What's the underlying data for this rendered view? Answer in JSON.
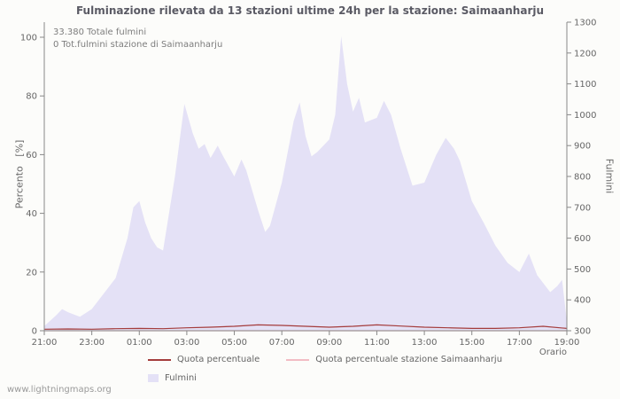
{
  "watermark": "www.lightningmaps.org",
  "annotations": {
    "total_fulmini": "33.380 Totale fulmini",
    "station_fulmini": "0 Tot.fulmini stazione di Saimaanharju"
  },
  "chart_data": {
    "type": "area",
    "title": "Fulminazione rilevata da 13 stazioni ultime 24h per la stazione: Saimaanharju",
    "legend_position": "bottom",
    "grid": false,
    "x_axis": {
      "label": "Orario",
      "hours_span": 22,
      "start": "21:00",
      "end": "19:00",
      "tick_labels": [
        "21:00",
        "23:00",
        "01:00",
        "03:00",
        "05:00",
        "07:00",
        "09:00",
        "11:00",
        "13:00",
        "15:00",
        "17:00",
        "19:00"
      ]
    },
    "y_left": {
      "label": "Percento   [%]",
      "min": 0,
      "max": 100,
      "ticks": [
        0,
        20,
        40,
        60,
        80,
        100
      ]
    },
    "y_right": {
      "label": "Fulmini",
      "min": 300,
      "max": 1300,
      "ticks": [
        300,
        400,
        500,
        600,
        700,
        800,
        900,
        1000,
        1100,
        1200,
        1300
      ]
    },
    "axis_color": "#888888",
    "series": [
      {
        "name": "Fulmini",
        "type": "area",
        "axis": "right",
        "color": "#e4e1f6",
        "t_hours": [
          0,
          0.5,
          0.75,
          1,
          1.5,
          2,
          2.5,
          3,
          3.5,
          3.75,
          4,
          4.25,
          4.5,
          4.75,
          5,
          5.5,
          5.9,
          6.25,
          6.5,
          6.75,
          7,
          7.3,
          7.5,
          8,
          8.3,
          8.5,
          9,
          9.3,
          9.5,
          10,
          10.5,
          10.75,
          11,
          11.25,
          11.5,
          12,
          12.25,
          12.5,
          12.75,
          13,
          13.25,
          13.5,
          14,
          14.3,
          14.6,
          15,
          15.5,
          16,
          16.5,
          16.9,
          17.25,
          17.5,
          18,
          18.5,
          19,
          19.5,
          20,
          20.4,
          20.75,
          21,
          21.3,
          21.6,
          21.8,
          22
        ],
        "values": [
          315,
          350,
          370,
          360,
          345,
          370,
          420,
          470,
          600,
          700,
          720,
          650,
          600,
          570,
          560,
          800,
          1035,
          940,
          890,
          905,
          860,
          900,
          870,
          800,
          855,
          820,
          690,
          620,
          640,
          780,
          980,
          1040,
          930,
          865,
          880,
          920,
          1000,
          1255,
          1100,
          1010,
          1055,
          975,
          990,
          1045,
          1000,
          890,
          770,
          780,
          870,
          925,
          890,
          850,
          720,
          650,
          575,
          520,
          490,
          550,
          480,
          455,
          425,
          445,
          465,
          330
        ]
      },
      {
        "name": "Quota percentuale",
        "type": "line",
        "axis": "left",
        "color": "#a43c3c",
        "t_hours": [
          0,
          1,
          2,
          3,
          4,
          5,
          6,
          7,
          8,
          9,
          10,
          11,
          12,
          13,
          14,
          15,
          16,
          17,
          18,
          19,
          20,
          21,
          22
        ],
        "values": [
          0.5,
          0.6,
          0.5,
          0.7,
          0.8,
          0.7,
          1,
          1.2,
          1.5,
          2,
          1.8,
          1.5,
          1.2,
          1.5,
          2,
          1.6,
          1.2,
          1,
          0.8,
          0.8,
          1,
          1.5,
          0.8
        ]
      },
      {
        "name": "Quota percentuale stazione Saimaanharju",
        "type": "line",
        "axis": "left",
        "color": "#f2bcc4",
        "t_hours": [
          0,
          22
        ],
        "values": [
          0,
          0
        ]
      }
    ]
  }
}
